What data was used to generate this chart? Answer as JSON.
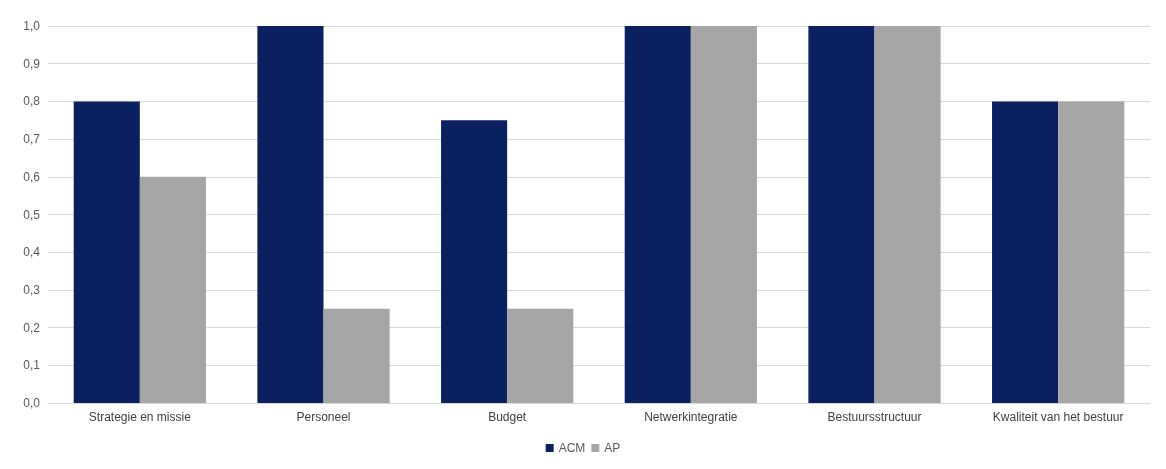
{
  "chart_data": {
    "type": "bar",
    "categories": [
      "Strategie en missie",
      "Personeel",
      "Budget",
      "Netwerkintegratie",
      "Bestuursstructuur",
      "Kwaliteit van het bestuur"
    ],
    "series": [
      {
        "name": "ACM",
        "color": "#0b2060",
        "values": [
          0.8,
          1.0,
          0.75,
          1.0,
          1.0,
          0.8
        ]
      },
      {
        "name": "AP",
        "color": "#a6a6a6",
        "values": [
          0.6,
          0.25,
          0.25,
          1.0,
          1.0,
          0.8
        ]
      }
    ],
    "ylim": [
      0,
      1
    ],
    "yticks": [
      {
        "value": 0,
        "label": "0,0"
      },
      {
        "value": 0.1,
        "label": "0,1"
      },
      {
        "value": 0.2,
        "label": "0,2"
      },
      {
        "value": 0.3,
        "label": "0,3"
      },
      {
        "value": 0.4,
        "label": "0,4"
      },
      {
        "value": 0.5,
        "label": "0,5"
      },
      {
        "value": 0.6,
        "label": "0,6"
      },
      {
        "value": 0.7,
        "label": "0,7"
      },
      {
        "value": 0.8,
        "label": "0,8"
      },
      {
        "value": 0.9,
        "label": "0,9"
      },
      {
        "value": 1,
        "label": "1,0"
      }
    ],
    "grid": "y",
    "legend": "bottom"
  }
}
